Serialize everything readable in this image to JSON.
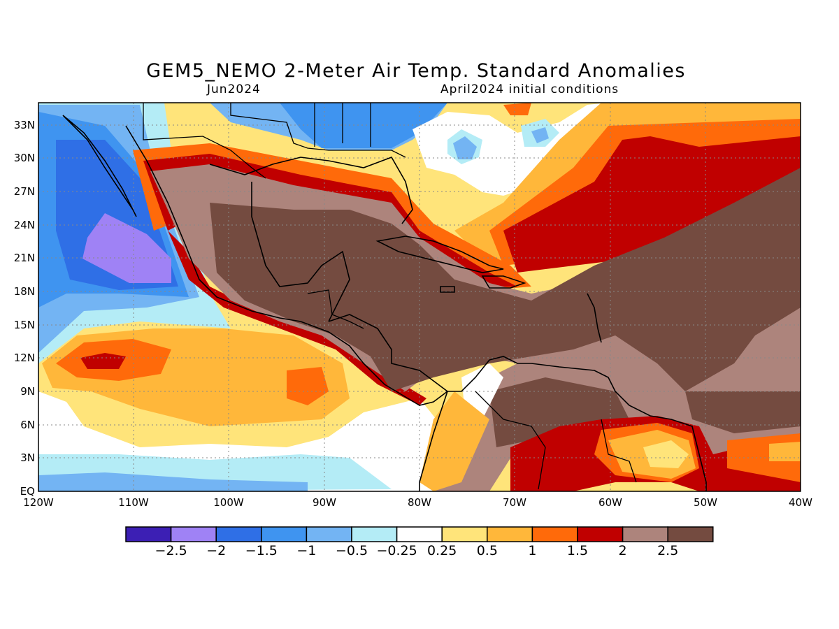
{
  "title": "GEM5_NEMO 2-Meter Air Temp. Standard Anomalies",
  "subtitle_left": "Jun2024",
  "subtitle_right": "April2024 initial conditions",
  "map": {
    "region": "Caribbean / Central America",
    "lon_range": [
      -120,
      -40
    ],
    "lat_range": [
      0,
      35
    ],
    "lat_labels": [
      "EQ",
      "3N",
      "6N",
      "9N",
      "12N",
      "15N",
      "18N",
      "21N",
      "24N",
      "27N",
      "30N",
      "33N"
    ],
    "lon_labels": [
      "120W",
      "110W",
      "100W",
      "90W",
      "80W",
      "70W",
      "60W",
      "50W",
      "40W"
    ],
    "gridlines": true
  },
  "colorbar": {
    "colors": [
      "#3c1fb4",
      "#9f82f5",
      "#2f6fe6",
      "#3f94f0",
      "#73b4f3",
      "#b4ecf6",
      "#ffffff",
      "#ffe47a",
      "#ffb73a",
      "#ff6a0a",
      "#c00000",
      "#ad847c",
      "#744b40"
    ],
    "labels": [
      "-2.5",
      "-2",
      "-1.5",
      "-1",
      "-0.5",
      "-0.25",
      "0.25",
      "0.5",
      "1",
      "1.5",
      "2",
      "2.5"
    ]
  }
}
